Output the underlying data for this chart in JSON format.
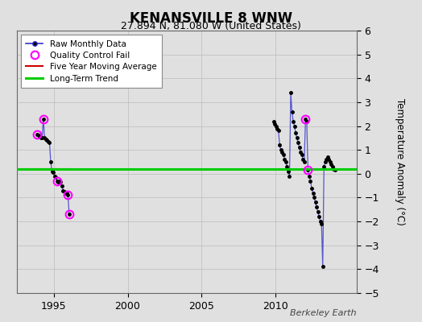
{
  "title": "KENANSVILLE 8 WNW",
  "subtitle": "27.894 N, 81.080 W (United States)",
  "ylabel": "Temperature Anomaly (°C)",
  "credit": "Berkeley Earth",
  "ylim": [
    -5,
    6
  ],
  "xlim": [
    1992.5,
    2015.5
  ],
  "xticks": [
    1995,
    2000,
    2005,
    2010
  ],
  "yticks": [
    -5,
    -4,
    -3,
    -2,
    -1,
    0,
    1,
    2,
    3,
    4,
    5,
    6
  ],
  "long_term_trend_y": 0.18,
  "background_color": "#e0e0e0",
  "segments": [
    [
      [
        1993.875,
        1.65
      ],
      [
        1993.958,
        1.6
      ],
      [
        1994.042,
        1.55
      ],
      [
        1994.125,
        1.5
      ],
      [
        1994.208,
        1.5
      ],
      [
        1994.292,
        2.3
      ],
      [
        1994.375,
        1.5
      ],
      [
        1994.458,
        1.45
      ],
      [
        1994.542,
        1.4
      ],
      [
        1994.625,
        1.35
      ],
      [
        1994.708,
        1.3
      ],
      [
        1994.792,
        0.5
      ],
      [
        1994.875,
        0.1
      ],
      [
        1994.958,
        0.05
      ],
      [
        1995.042,
        -0.1
      ],
      [
        1995.125,
        -0.15
      ],
      [
        1995.208,
        -0.3
      ],
      [
        1995.292,
        -0.35
      ],
      [
        1995.375,
        -0.3
      ],
      [
        1995.458,
        -0.35
      ],
      [
        1995.542,
        -0.5
      ],
      [
        1995.625,
        -0.7
      ],
      [
        1995.708,
        -0.75
      ],
      [
        1995.792,
        -0.8
      ],
      [
        1995.875,
        -0.8
      ],
      [
        1995.958,
        -0.9
      ],
      [
        1996.042,
        -1.7
      ]
    ],
    [
      [
        2009.875,
        2.2
      ],
      [
        2009.958,
        2.1
      ],
      [
        2010.042,
        2.0
      ],
      [
        2010.125,
        1.9
      ],
      [
        2010.208,
        1.8
      ],
      [
        2010.292,
        1.2
      ],
      [
        2010.375,
        1.0
      ],
      [
        2010.458,
        0.9
      ],
      [
        2010.542,
        0.8
      ],
      [
        2010.625,
        0.6
      ],
      [
        2010.708,
        0.5
      ],
      [
        2010.792,
        0.3
      ],
      [
        2010.875,
        0.1
      ],
      [
        2010.958,
        -0.1
      ],
      [
        2011.042,
        3.4
      ],
      [
        2011.125,
        2.6
      ],
      [
        2011.208,
        2.2
      ],
      [
        2011.292,
        2.0
      ],
      [
        2011.375,
        1.7
      ],
      [
        2011.458,
        1.5
      ],
      [
        2011.542,
        1.3
      ],
      [
        2011.625,
        1.1
      ],
      [
        2011.708,
        0.9
      ],
      [
        2011.792,
        0.8
      ],
      [
        2011.875,
        0.6
      ],
      [
        2011.958,
        0.5
      ],
      [
        2012.042,
        2.3
      ],
      [
        2012.125,
        2.2
      ],
      [
        2012.208,
        0.15
      ],
      [
        2012.292,
        -0.1
      ],
      [
        2012.375,
        -0.3
      ],
      [
        2012.458,
        -0.6
      ],
      [
        2012.542,
        -0.8
      ],
      [
        2012.625,
        -1.0
      ],
      [
        2012.708,
        -1.2
      ],
      [
        2012.792,
        -1.4
      ],
      [
        2012.875,
        -1.6
      ],
      [
        2012.958,
        -1.8
      ],
      [
        2013.042,
        -2.0
      ],
      [
        2013.125,
        -2.1
      ],
      [
        2013.208,
        -3.9
      ],
      [
        2013.292,
        0.3
      ],
      [
        2013.375,
        0.5
      ],
      [
        2013.458,
        0.6
      ],
      [
        2013.542,
        0.7
      ],
      [
        2013.625,
        0.6
      ],
      [
        2013.708,
        0.5
      ],
      [
        2013.792,
        0.4
      ],
      [
        2013.875,
        0.3
      ],
      [
        2013.958,
        0.2
      ],
      [
        2014.042,
        0.15
      ]
    ]
  ],
  "qc_fail": [
    [
      1993.875,
      1.65
    ],
    [
      1994.292,
      2.3
    ],
    [
      1995.208,
      -0.3
    ],
    [
      1995.958,
      -0.9
    ],
    [
      1996.042,
      -1.7
    ],
    [
      2012.042,
      2.3
    ],
    [
      2012.208,
      0.15
    ]
  ],
  "raw_color": "#3333cc",
  "raw_dot_color": "#000000",
  "qc_color": "#ff00ff",
  "moving_avg_color": "#cc0000",
  "trend_color": "#00cc00",
  "grid_color": "#bbbbbb"
}
